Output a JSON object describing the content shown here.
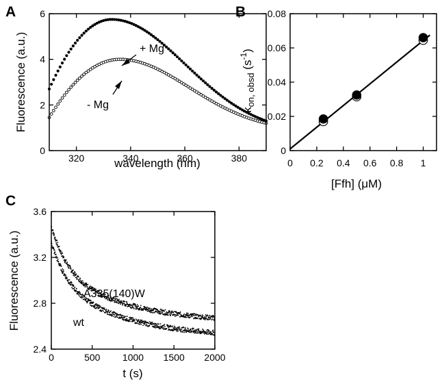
{
  "figure": {
    "panels": [
      "A",
      "B",
      "C"
    ]
  },
  "chart_data": [
    {
      "panel": "A",
      "type": "scatter",
      "xlabel": "wavelength (nm)",
      "ylabel": "Fluorescence (a.u.)",
      "xlim": [
        310,
        390
      ],
      "ylim": [
        0,
        6
      ],
      "xticks": [
        320,
        340,
        360,
        380
      ],
      "yticks": [
        0,
        2,
        4,
        6
      ],
      "annotations": [
        "+ Mg",
        "- Mg"
      ],
      "series": [
        {
          "name": "+ Mg",
          "marker": "filled-circle",
          "peak_x": 333,
          "peak_y": 5.75,
          "start_y": 2.7,
          "end_y": 1.3
        },
        {
          "name": "- Mg",
          "marker": "open-circle",
          "peak_x": 336,
          "peak_y": 4.0,
          "start_y": 1.45,
          "end_y": 1.2
        }
      ]
    },
    {
      "panel": "B",
      "type": "scatter",
      "xlabel": "[Ffh] (μM)",
      "ylabel_main": "k",
      "ylabel_sub": "on, obsd",
      "ylabel_unit": " (s",
      "ylabel_sup": "-1",
      "ylabel_close": ")",
      "xlim": [
        0,
        1.1
      ],
      "ylim": [
        0,
        0.08
      ],
      "xticks": [
        "0",
        "0.2",
        "0.4",
        "0.6",
        "0.8",
        "1"
      ],
      "xtick_values": [
        0,
        0.2,
        0.4,
        0.6,
        0.8,
        1
      ],
      "yticks": [
        "0",
        "0.02",
        "0.04",
        "0.06",
        "0.08"
      ],
      "ytick_values": [
        0,
        0.02,
        0.04,
        0.06,
        0.08
      ],
      "series": [
        {
          "name": "filled",
          "marker": "filled-circle",
          "x": [
            0.25,
            0.5,
            1.0
          ],
          "y": [
            0.0185,
            0.0325,
            0.066
          ]
        },
        {
          "name": "open",
          "marker": "open-circle",
          "x": [
            0.25,
            0.5,
            1.0
          ],
          "y": [
            0.017,
            0.0315,
            0.0645
          ]
        }
      ],
      "fit_line": {
        "x": [
          0,
          1.05
        ],
        "y": [
          0.001,
          0.0675
        ]
      }
    },
    {
      "panel": "C",
      "type": "scatter",
      "xlabel": "t (s)",
      "ylabel": "Fluorescence (a.u.)",
      "xlim": [
        0,
        2000
      ],
      "ylim": [
        2.4,
        3.6
      ],
      "xticks": [
        0,
        500,
        1000,
        1500,
        2000
      ],
      "yticks": [
        "2.4",
        "2.8",
        "3.2",
        "3.6"
      ],
      "ytick_values": [
        2.4,
        2.8,
        3.2,
        3.6
      ],
      "annotations": [
        "A335(140)W",
        "wt"
      ],
      "series": [
        {
          "name": "A335(140)W",
          "start_y": 3.47,
          "end_y": 2.62,
          "fast_amp": 0.38,
          "fast_tau": 200,
          "slow_amp": 0.47,
          "slow_tau": 900
        },
        {
          "name": "wt",
          "start_y": 3.33,
          "end_y": 2.49,
          "fast_amp": 0.36,
          "fast_tau": 200,
          "slow_amp": 0.48,
          "slow_tau": 900
        }
      ]
    }
  ]
}
